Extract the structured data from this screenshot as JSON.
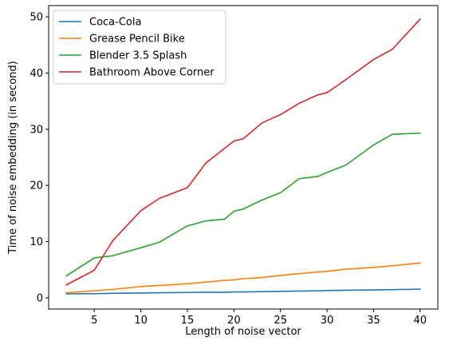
{
  "chart_data": {
    "type": "line",
    "title": "",
    "xlabel": "Length of noise vector",
    "ylabel": "Time of noise embedding (in second)",
    "xlim": [
      0.1,
      41.9
    ],
    "ylim": [
      -2.0,
      52.0
    ],
    "xticks": [
      5,
      10,
      15,
      20,
      25,
      30,
      35,
      40
    ],
    "yticks": [
      0,
      10,
      20,
      30,
      40,
      50
    ],
    "grid": false,
    "legend_position": "top-left",
    "series": [
      {
        "name": "Coca-Cola",
        "color": "#1f77b4",
        "x": [
          2,
          5,
          7,
          10,
          12,
          15,
          17,
          19,
          20,
          21,
          23,
          25,
          27,
          29,
          30,
          32,
          35,
          37,
          40
        ],
        "y": [
          0.7,
          0.75,
          0.8,
          0.85,
          0.9,
          0.95,
          1.0,
          1.0,
          1.05,
          1.05,
          1.1,
          1.15,
          1.2,
          1.25,
          1.3,
          1.35,
          1.4,
          1.45,
          1.55
        ]
      },
      {
        "name": "Grease Pencil Bike",
        "color": "#ff7f0e",
        "x": [
          2,
          5,
          7,
          10,
          12,
          15,
          17,
          19,
          20,
          21,
          23,
          25,
          27,
          29,
          30,
          32,
          35,
          37,
          40
        ],
        "y": [
          0.9,
          1.25,
          1.5,
          2.0,
          2.2,
          2.5,
          2.8,
          3.1,
          3.2,
          3.4,
          3.6,
          4.0,
          4.3,
          4.6,
          4.7,
          5.1,
          5.4,
          5.7,
          6.2
        ]
      },
      {
        "name": "Blender 3.5 Splash",
        "color": "#2ca02c",
        "x": [
          2,
          5,
          7,
          10,
          12,
          15,
          17,
          19,
          20,
          21,
          23,
          25,
          27,
          29,
          30,
          32,
          35,
          37,
          40
        ],
        "y": [
          3.9,
          7.1,
          7.5,
          8.9,
          9.9,
          12.8,
          13.7,
          14.0,
          15.4,
          15.8,
          17.4,
          18.7,
          21.2,
          21.6,
          22.3,
          23.6,
          27.2,
          29.1,
          29.3
        ]
      },
      {
        "name": "Bathroom Above Corner",
        "color": "#d62728",
        "x": [
          2,
          5,
          7,
          10,
          12,
          15,
          17,
          19,
          20,
          21,
          23,
          25,
          27,
          29,
          30,
          32,
          35,
          37,
          40
        ],
        "y": [
          2.3,
          4.9,
          10.2,
          15.5,
          17.7,
          19.6,
          24.0,
          26.6,
          27.9,
          28.3,
          31.1,
          32.6,
          34.6,
          36.1,
          36.5,
          38.8,
          42.4,
          44.2,
          49.6
        ]
      }
    ]
  }
}
